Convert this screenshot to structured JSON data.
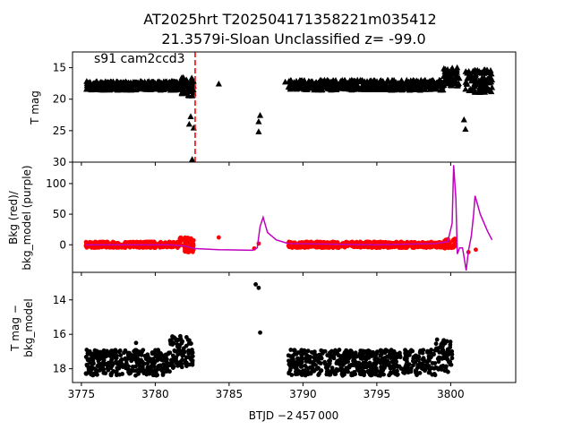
{
  "figure": {
    "title_line1": "AT2025hrt  T202504171358221m035412",
    "title_line2": "21.3579i-Sloan Unclassified z= -99.0"
  },
  "chart_data": [
    {
      "type": "scatter",
      "panel": "top",
      "ylabel": "T mag",
      "annotation": "s91 cam2ccd3",
      "ylim": [
        30,
        12.5
      ],
      "y_inverted": true,
      "xlim": [
        3774.4,
        3804.4
      ],
      "yticks": [
        15,
        20,
        25,
        30
      ],
      "marker": "triangle",
      "color": "#000000",
      "vline": {
        "x": 3782.7,
        "color": "#ff0000",
        "style": "dashed"
      },
      "series": [
        {
          "name": "",
          "segments": [
            {
              "x0": 3775.3,
              "x1": 3781.6,
              "y_low": 17.2,
              "y_high": 18.6
            },
            {
              "x0": 3781.6,
              "x1": 3782.6,
              "y_low": 16.5,
              "y_high": 19.5
            },
            {
              "x0": 3789.0,
              "x1": 3799.5,
              "y_low": 17.0,
              "y_high": 18.6
            },
            {
              "x0": 3799.5,
              "x1": 3800.6,
              "y_low": 15.0,
              "y_high": 18.0
            },
            {
              "x0": 3801.0,
              "x1": 3802.8,
              "y_low": 15.3,
              "y_high": 19.0
            }
          ],
          "points": [
            [
              3782.4,
              22.8
            ],
            [
              3782.3,
              24.0
            ],
            [
              3782.6,
              24.6
            ],
            [
              3782.5,
              29.6
            ],
            [
              3784.3,
              17.6
            ],
            [
              3787.0,
              23.6
            ],
            [
              3787.1,
              22.6
            ],
            [
              3787.0,
              25.2
            ],
            [
              3788.8,
              17.3
            ],
            [
              3800.9,
              23.3
            ],
            [
              3801.0,
              24.8
            ]
          ]
        }
      ]
    },
    {
      "type": "scatter",
      "panel": "middle",
      "ylabel_line1": "Bkg (red)/",
      "ylabel_line2": "bkg_model (purple)",
      "ylim": [
        -45,
        135
      ],
      "yticks": [
        0,
        50,
        100
      ],
      "xlim": [
        3774.4,
        3804.4
      ],
      "series": [
        {
          "name": "Bkg",
          "color": "#ff0000",
          "marker": "circle",
          "segments": [
            {
              "x0": 3775.3,
              "x1": 3781.6,
              "y_low": -5,
              "y_high": 5
            },
            {
              "x0": 3781.6,
              "x1": 3782.6,
              "y_low": -12,
              "y_high": 12
            },
            {
              "x0": 3789.0,
              "x1": 3799.5,
              "y_low": -5,
              "y_high": 5
            },
            {
              "x0": 3799.5,
              "x1": 3800.3,
              "y_low": -6,
              "y_high": 10
            }
          ],
          "points": [
            [
              3784.3,
              12
            ],
            [
              3786.7,
              -6
            ],
            [
              3787.0,
              2
            ],
            [
              3801.2,
              -12
            ],
            [
              3801.7,
              -8
            ]
          ]
        },
        {
          "name": "bkg_model",
          "color": "#bf00bf",
          "marker": "line",
          "points": [
            [
              3775.3,
              0
            ],
            [
              3781.0,
              0
            ],
            [
              3782.0,
              -2
            ],
            [
              3782.6,
              -6
            ],
            [
              3784.3,
              -8
            ],
            [
              3786.6,
              -9
            ],
            [
              3786.9,
              -5
            ],
            [
              3787.1,
              30
            ],
            [
              3787.3,
              45
            ],
            [
              3787.6,
              20
            ],
            [
              3788.2,
              8
            ],
            [
              3789.0,
              2
            ],
            [
              3795.0,
              0
            ],
            [
              3799.0,
              2
            ],
            [
              3799.8,
              5
            ],
            [
              3800.1,
              35
            ],
            [
              3800.2,
              130
            ],
            [
              3800.35,
              75
            ],
            [
              3800.45,
              -15
            ],
            [
              3800.6,
              -5
            ],
            [
              3800.8,
              -5
            ],
            [
              3800.9,
              -20
            ],
            [
              3801.05,
              -42
            ],
            [
              3801.2,
              -10
            ],
            [
              3801.4,
              15
            ],
            [
              3801.55,
              50
            ],
            [
              3801.65,
              80
            ],
            [
              3802.0,
              50
            ],
            [
              3802.5,
              22
            ],
            [
              3802.8,
              8
            ]
          ]
        }
      ]
    },
    {
      "type": "scatter",
      "panel": "bottom",
      "ylabel_line1": "T mag −",
      "ylabel_line2": "bkg_model",
      "ylim": [
        18.8,
        12.4
      ],
      "y_inverted": true,
      "yticks": [
        14,
        16,
        18
      ],
      "xlim": [
        3774.4,
        3804.4
      ],
      "xticks": [
        3775,
        3780,
        3785,
        3790,
        3795,
        3800
      ],
      "xlabel": "BTJD −2 457 000",
      "marker": "circle",
      "color": "#000000",
      "series": [
        {
          "name": "",
          "segments": [
            {
              "x0": 3775.3,
              "x1": 3781.0,
              "y_low": 16.9,
              "y_high": 18.4
            },
            {
              "x0": 3781.0,
              "x1": 3782.6,
              "y_low": 16.1,
              "y_high": 18.0
            },
            {
              "x0": 3789.0,
              "x1": 3799.0,
              "y_low": 16.9,
              "y_high": 18.4
            },
            {
              "x0": 3799.0,
              "x1": 3800.1,
              "y_low": 16.3,
              "y_high": 18.2
            }
          ],
          "points": [
            [
              3778.7,
              16.5
            ],
            [
              3786.8,
              13.1
            ],
            [
              3787.0,
              13.3
            ],
            [
              3787.1,
              15.9
            ]
          ]
        }
      ]
    }
  ]
}
